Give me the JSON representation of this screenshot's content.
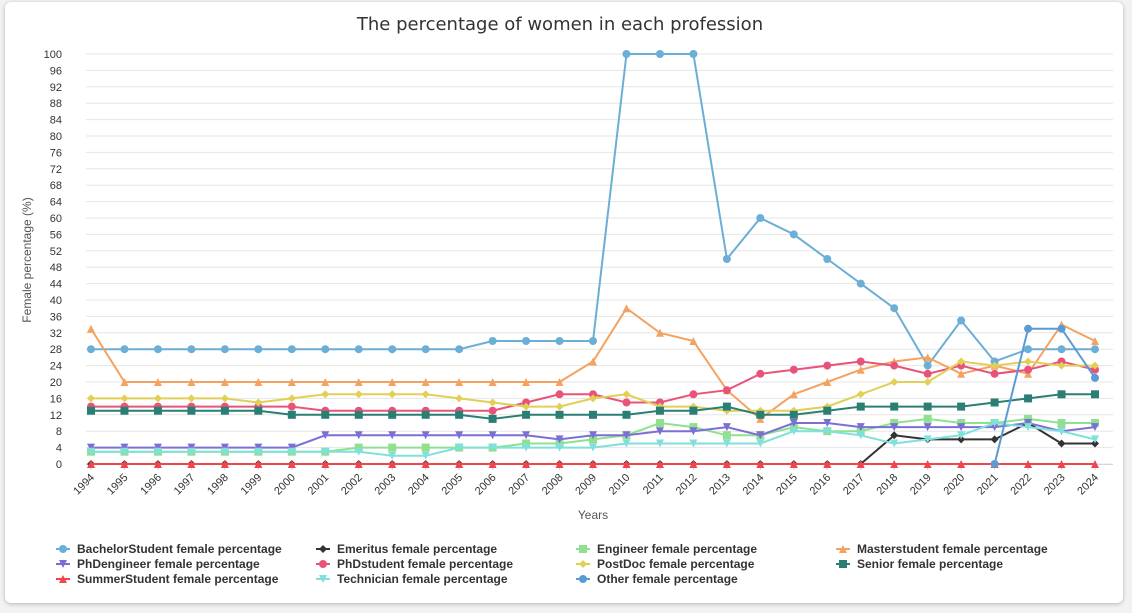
{
  "chart_data": {
    "type": "line",
    "title": "The percentage of women in each profession",
    "xlabel": "Years",
    "ylabel": "Female percentage (%)",
    "ylim": [
      0,
      100
    ],
    "yticks": [
      0,
      4,
      8,
      12,
      16,
      20,
      24,
      28,
      32,
      36,
      40,
      44,
      48,
      52,
      56,
      60,
      64,
      68,
      72,
      76,
      80,
      84,
      88,
      92,
      96,
      100
    ],
    "grid": true,
    "legend_position": "bottom",
    "x": [
      "1994",
      "1995",
      "1996",
      "1997",
      "1998",
      "1999",
      "2000",
      "2001",
      "2002",
      "2003",
      "2004",
      "2005",
      "2006",
      "2007",
      "2008",
      "2009",
      "2010",
      "2011",
      "2012",
      "2013",
      "2014",
      "2015",
      "2016",
      "2017",
      "2018",
      "2019",
      "2020",
      "2021",
      "2022",
      "2023",
      "2024"
    ],
    "series": [
      {
        "name": "BachelorStudent female percentage",
        "color": "#6baed6",
        "marker": "circle",
        "values": [
          28,
          28,
          28,
          28,
          28,
          28,
          28,
          28,
          28,
          28,
          28,
          28,
          30,
          30,
          30,
          30,
          100,
          100,
          100,
          50,
          60,
          56,
          50,
          44,
          38,
          24,
          35,
          25,
          28,
          28,
          28
        ]
      },
      {
        "name": "Emeritus female percentage",
        "color": "#333333",
        "marker": "diamond",
        "values": [
          0,
          0,
          0,
          0,
          0,
          0,
          0,
          0,
          0,
          0,
          0,
          0,
          0,
          0,
          0,
          0,
          0,
          0,
          0,
          0,
          0,
          0,
          0,
          0,
          7,
          6,
          6,
          6,
          10,
          5,
          5
        ]
      },
      {
        "name": "Engineer female percentage",
        "color": "#8fe08f",
        "marker": "square",
        "values": [
          3,
          3,
          3,
          3,
          3,
          3,
          3,
          3,
          4,
          4,
          4,
          4,
          4,
          5,
          5,
          6,
          7,
          10,
          9,
          7,
          7,
          9,
          8,
          8,
          10,
          11,
          10,
          10,
          11,
          10,
          10
        ]
      },
      {
        "name": "Masterstudent female percentage",
        "color": "#f4a261",
        "marker": "triangle",
        "values": [
          33,
          20,
          20,
          20,
          20,
          20,
          20,
          20,
          20,
          20,
          20,
          20,
          20,
          20,
          20,
          25,
          38,
          32,
          30,
          18,
          11,
          17,
          20,
          23,
          25,
          26,
          22,
          24,
          22,
          34,
          30
        ]
      },
      {
        "name": "PhDengineer female percentage",
        "color": "#7b6fd6",
        "marker": "triangle-down",
        "values": [
          4,
          4,
          4,
          4,
          4,
          4,
          4,
          7,
          7,
          7,
          7,
          7,
          7,
          7,
          6,
          7,
          7,
          8,
          8,
          9,
          7,
          10,
          10,
          9,
          9,
          9,
          9,
          9,
          10,
          8,
          9
        ]
      },
      {
        "name": "PhDstudent female percentage",
        "color": "#e8537a",
        "marker": "circle",
        "values": [
          14,
          14,
          14,
          14,
          14,
          14,
          14,
          13,
          13,
          13,
          13,
          13,
          13,
          15,
          17,
          17,
          15,
          15,
          17,
          18,
          22,
          23,
          24,
          25,
          24,
          22,
          24,
          22,
          23,
          25,
          23
        ]
      },
      {
        "name": "PostDoc female percentage",
        "color": "#e2cf56",
        "marker": "diamond",
        "values": [
          16,
          16,
          16,
          16,
          16,
          15,
          16,
          17,
          17,
          17,
          17,
          16,
          15,
          14,
          14,
          16,
          17,
          14,
          14,
          13,
          13,
          13,
          14,
          17,
          20,
          20,
          25,
          24,
          25,
          24,
          24
        ]
      },
      {
        "name": "Senior female percentage",
        "color": "#2a7f74",
        "marker": "square",
        "values": [
          13,
          13,
          13,
          13,
          13,
          13,
          12,
          12,
          12,
          12,
          12,
          12,
          11,
          12,
          12,
          12,
          12,
          13,
          13,
          14,
          12,
          12,
          13,
          14,
          14,
          14,
          14,
          15,
          16,
          17,
          17
        ]
      },
      {
        "name": "SummerStudent female percentage",
        "color": "#f0454a",
        "marker": "triangle",
        "values": [
          0,
          0,
          0,
          0,
          0,
          0,
          0,
          0,
          0,
          0,
          0,
          0,
          0,
          0,
          0,
          0,
          0,
          0,
          0,
          0,
          0,
          0,
          0,
          0,
          0,
          0,
          0,
          0,
          0,
          0,
          0
        ]
      },
      {
        "name": "Technician female percentage",
        "color": "#7fe0dc",
        "marker": "triangle-down",
        "values": [
          3,
          3,
          3,
          3,
          3,
          3,
          3,
          3,
          3,
          2,
          2,
          4,
          4,
          4,
          4,
          4,
          5,
          5,
          5,
          5,
          5,
          8,
          8,
          7,
          5,
          6,
          7,
          10,
          9,
          8,
          6
        ]
      },
      {
        "name": "Other female percentage",
        "color": "#5b9bd5",
        "marker": "circle",
        "values": [
          null,
          null,
          null,
          null,
          null,
          null,
          null,
          null,
          null,
          null,
          null,
          null,
          null,
          null,
          null,
          null,
          null,
          null,
          null,
          null,
          null,
          null,
          null,
          null,
          null,
          null,
          null,
          0,
          33,
          33,
          21
        ]
      }
    ]
  }
}
